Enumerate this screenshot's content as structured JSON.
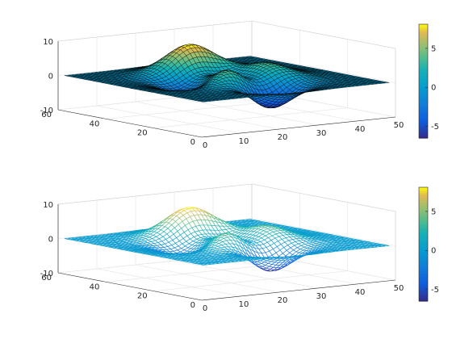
{
  "chart_data": [
    {
      "type": "surface",
      "variant": "surf",
      "surface_function": "3*(1-x)^2*exp(-x^2-(y+1)^2) - 10*(x/5-x^3-y^5)*exp(-x^2-y^2) - 1/3*exp(-(x+1)^2-y^2)",
      "grid_size": [
        49,
        49
      ],
      "edge_color": "#000000",
      "xlim": [
        0,
        50
      ],
      "ylim": [
        0,
        60
      ],
      "zlim": [
        -10,
        10
      ],
      "x_ticks": [
        "0",
        "10",
        "20",
        "30",
        "40",
        "50"
      ],
      "y_ticks": [
        "0",
        "20",
        "40",
        "60"
      ],
      "z_ticks": [
        "-10",
        "0",
        "10"
      ],
      "colorbar": {
        "range": [
          -6.5,
          8.1
        ],
        "ticks": [
          "-5",
          "0",
          "5"
        ],
        "colormap": "parula"
      },
      "grid": true
    },
    {
      "type": "surface",
      "variant": "mesh",
      "surface_function": "3*(1-x)^2*exp(-x^2-(y+1)^2) - 10*(x/5-x^3-y^5)*exp(-x^2-y^2) - 1/3*exp(-(x+1)^2-y^2)",
      "grid_size": [
        49,
        49
      ],
      "edge_color": "colormap",
      "xlim": [
        0,
        50
      ],
      "ylim": [
        0,
        60
      ],
      "zlim": [
        -10,
        10
      ],
      "x_ticks": [
        "0",
        "10",
        "20",
        "30",
        "40",
        "50"
      ],
      "y_ticks": [
        "0",
        "20",
        "40",
        "60"
      ],
      "z_ticks": [
        "-10",
        "0",
        "10"
      ],
      "colorbar": {
        "range": [
          -6.5,
          8.1
        ],
        "ticks": [
          "-5",
          "0",
          "5"
        ],
        "colormap": "parula"
      },
      "grid": true
    }
  ]
}
